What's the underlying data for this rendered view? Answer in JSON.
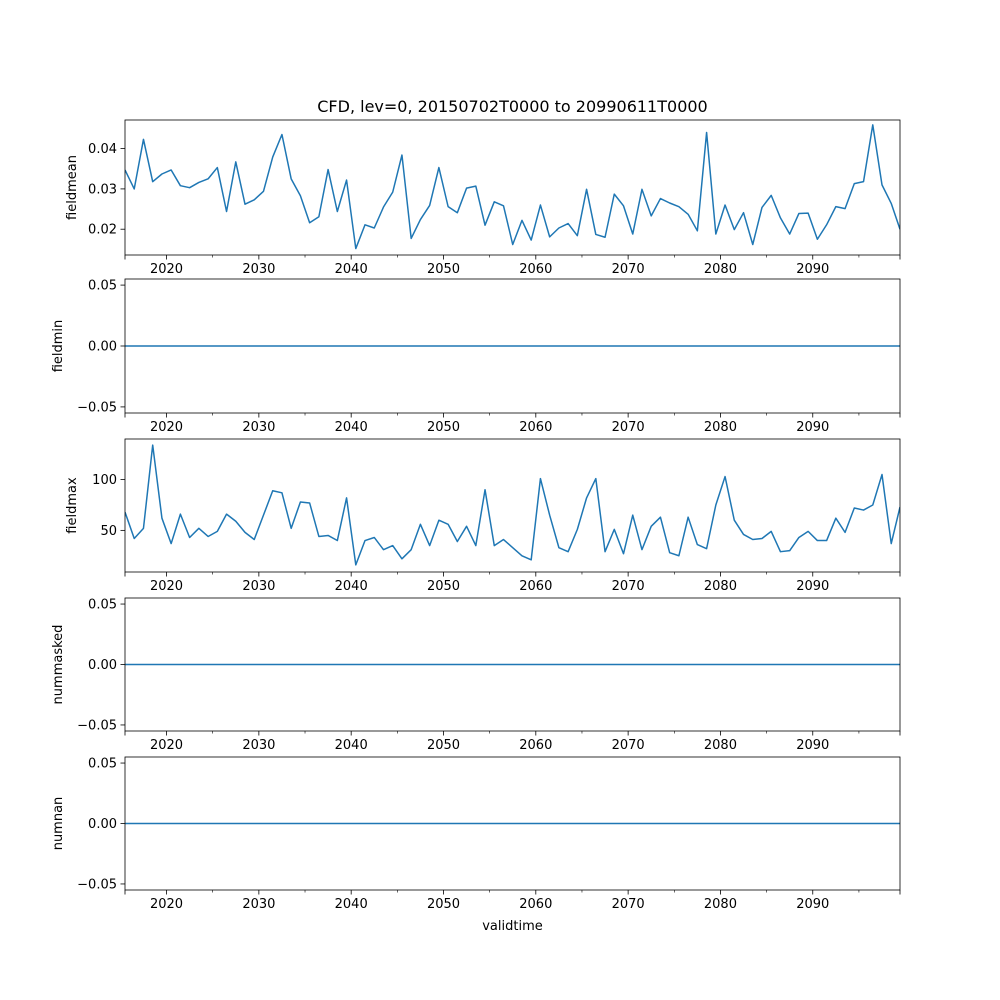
{
  "chart_data": {
    "type": "line",
    "title": "CFD, lev=0, 20150702T0000 to 20990611T0000",
    "xlabel": "validtime",
    "x_range": [
      2015.5,
      2099.45
    ],
    "x_major_ticks": [
      2020,
      2030,
      2040,
      2050,
      2060,
      2070,
      2080,
      2090
    ],
    "x_minor_ticks": [
      2025,
      2035,
      2045,
      2055,
      2065,
      2075,
      2085,
      2095
    ],
    "x": [
      2015.5,
      2016.5,
      2017.5,
      2018.5,
      2019.5,
      2020.5,
      2021.5,
      2022.5,
      2023.5,
      2024.5,
      2025.5,
      2026.5,
      2027.5,
      2028.5,
      2029.5,
      2030.5,
      2031.5,
      2032.5,
      2033.5,
      2034.5,
      2035.5,
      2036.5,
      2037.5,
      2038.5,
      2039.5,
      2040.5,
      2041.5,
      2042.5,
      2043.5,
      2044.5,
      2045.5,
      2046.5,
      2047.5,
      2048.5,
      2049.5,
      2050.5,
      2051.5,
      2052.5,
      2053.5,
      2054.5,
      2055.5,
      2056.5,
      2057.5,
      2058.5,
      2059.5,
      2060.5,
      2061.5,
      2062.5,
      2063.5,
      2064.5,
      2065.5,
      2066.5,
      2067.5,
      2068.5,
      2069.5,
      2070.5,
      2071.5,
      2072.5,
      2073.5,
      2074.5,
      2075.5,
      2076.5,
      2077.5,
      2078.5,
      2079.5,
      2080.5,
      2081.5,
      2082.5,
      2083.5,
      2084.5,
      2085.5,
      2086.5,
      2087.5,
      2088.5,
      2089.5,
      2090.5,
      2091.5,
      2092.5,
      2093.5,
      2094.5,
      2095.5,
      2096.5,
      2097.5,
      2098.5,
      2099.45
    ],
    "line_color": "#1f77b4",
    "series": [
      {
        "name": "fieldmean",
        "ylabel": "fieldmean",
        "ylim": [
          0.0136,
          0.0471
        ],
        "yticks": [
          0.02,
          0.03,
          0.04
        ],
        "ytick_labels": [
          "0.02",
          "0.03",
          "0.04"
        ],
        "values": [
          0.0347,
          0.03,
          0.0423,
          0.0318,
          0.0337,
          0.0347,
          0.0308,
          0.0303,
          0.0316,
          0.0325,
          0.0353,
          0.0244,
          0.0367,
          0.0262,
          0.0273,
          0.0294,
          0.0379,
          0.0435,
          0.0325,
          0.0283,
          0.0216,
          0.0231,
          0.0348,
          0.0244,
          0.0322,
          0.0152,
          0.0211,
          0.0203,
          0.0255,
          0.0292,
          0.0384,
          0.0177,
          0.0224,
          0.0259,
          0.0353,
          0.0256,
          0.0241,
          0.0302,
          0.0307,
          0.021,
          0.0268,
          0.0258,
          0.0162,
          0.0222,
          0.0173,
          0.026,
          0.0181,
          0.0203,
          0.0214,
          0.0184,
          0.0299,
          0.0187,
          0.018,
          0.0287,
          0.0258,
          0.0188,
          0.0299,
          0.0233,
          0.0276,
          0.0265,
          0.0256,
          0.0237,
          0.0196,
          0.044,
          0.0188,
          0.026,
          0.0199,
          0.0241,
          0.0162,
          0.0254,
          0.0284,
          0.0228,
          0.0188,
          0.0239,
          0.024,
          0.0175,
          0.0211,
          0.0256,
          0.0251,
          0.0313,
          0.0318,
          0.0459,
          0.031,
          0.0264,
          0.02
        ]
      },
      {
        "name": "fieldmin",
        "ylabel": "fieldmin",
        "ylim": [
          -0.055,
          0.055
        ],
        "yticks": [
          -0.05,
          0.0,
          0.05
        ],
        "ytick_labels": [
          "−0.05",
          "0.00",
          "0.05"
        ],
        "constant": 0.0
      },
      {
        "name": "fieldmax",
        "ylabel": "fieldmax",
        "ylim": [
          9.0,
          140.0
        ],
        "yticks": [
          50,
          100
        ],
        "ytick_labels": [
          "50",
          "100"
        ],
        "values": [
          68,
          42,
          52,
          134,
          62,
          37,
          66,
          43,
          52,
          44,
          49,
          66,
          59,
          48,
          41,
          65,
          89,
          87,
          52,
          78,
          77,
          44,
          45,
          40,
          82,
          16,
          40,
          43,
          31,
          35,
          22,
          31,
          56,
          35,
          60,
          56,
          39,
          54,
          35,
          90,
          35,
          41,
          33,
          25,
          21,
          101,
          65,
          33,
          29,
          51,
          82,
          101,
          29,
          51,
          27,
          65,
          31,
          54,
          63,
          28,
          25,
          63,
          36,
          32,
          75,
          103,
          60,
          46,
          41,
          42,
          49,
          29,
          30,
          43,
          49,
          40,
          40,
          62,
          48,
          72,
          70,
          75,
          105,
          37,
          73
        ]
      },
      {
        "name": "nummasked",
        "ylabel": "nummasked",
        "ylim": [
          -0.055,
          0.055
        ],
        "yticks": [
          -0.05,
          0.0,
          0.05
        ],
        "ytick_labels": [
          "−0.05",
          "0.00",
          "0.05"
        ],
        "constant": 0.0
      },
      {
        "name": "numnan",
        "ylabel": "numnan",
        "ylim": [
          -0.055,
          0.055
        ],
        "yticks": [
          -0.05,
          0.0,
          0.05
        ],
        "ytick_labels": [
          "−0.05",
          "0.00",
          "0.05"
        ],
        "constant": 0.0
      }
    ]
  }
}
